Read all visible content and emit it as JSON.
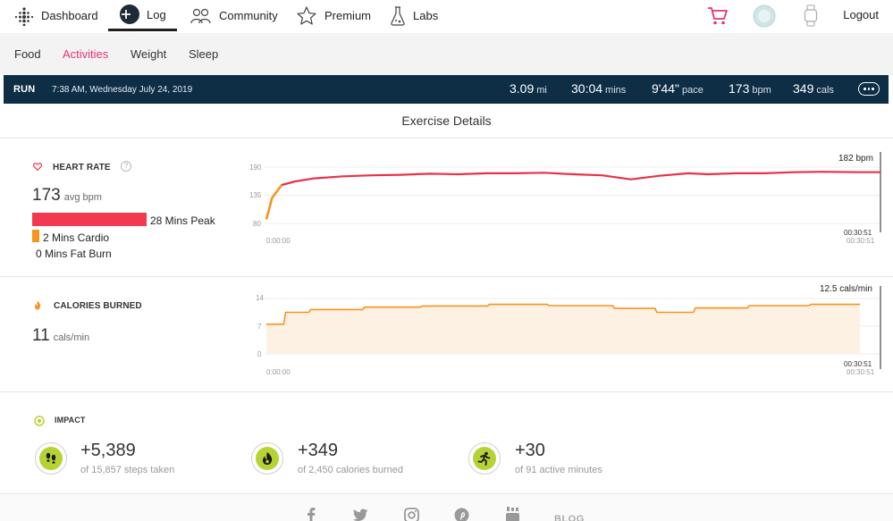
{
  "nav": {
    "dashboard": "Dashboard",
    "log": "Log",
    "community": "Community",
    "premium": "Premium",
    "labs": "Labs",
    "logout": "Logout"
  },
  "subnav": {
    "items": [
      "Food",
      "Activities",
      "Weight",
      "Sleep"
    ],
    "active": "Activities"
  },
  "run": {
    "type": "RUN",
    "datetime": "7:38 AM, Wednesday July 24, 2019",
    "distance": "3.09",
    "distance_unit": "mi",
    "duration": "30:04",
    "duration_unit": "mins",
    "pace": "9'44\"",
    "pace_unit": "pace",
    "avg_hr": "173",
    "avg_hr_unit": "bpm",
    "calories": "349",
    "calories_unit": "cals"
  },
  "details_title": "Exercise Details",
  "heart_rate": {
    "title": "HEART RATE",
    "avg_value": "173",
    "avg_unit": "avg bpm",
    "zones": [
      {
        "label": "28 Mins Peak",
        "minutes": 28,
        "color": "#f2394f"
      },
      {
        "label": "2 Mins Cardio",
        "minutes": 2,
        "color": "#f7931e"
      },
      {
        "label": "0 Mins Fat Burn",
        "minutes": 0,
        "color": "#f6c342"
      }
    ],
    "max_label": "182 bpm",
    "end_time": "00:30:51",
    "end_time_sub": "00:30:51",
    "start_time": "0:00:00"
  },
  "calories": {
    "title": "CALORIES BURNED",
    "avg_value": "11",
    "avg_unit": "cals/min",
    "max_label": "12.5 cals/min",
    "end_time": "00:30:51",
    "end_time_sub": "00:30:51",
    "start_time": "0:00:00"
  },
  "chart_data": [
    {
      "type": "line",
      "x": [
        0,
        0.3,
        0.8,
        1.5,
        2.5,
        4,
        5.5,
        7,
        8.5,
        10,
        11.5,
        13,
        14.5,
        16,
        17.5,
        19,
        20.5,
        22,
        23,
        24.5,
        26,
        27.5,
        29,
        30.85
      ],
      "series": [
        {
          "values": [
            88,
            130,
            155,
            162,
            168,
            172,
            174,
            175,
            177,
            176,
            178,
            178,
            179,
            176,
            174,
            166,
            173,
            178,
            176,
            178,
            178,
            180,
            181,
            180
          ]
        }
      ],
      "yticks": [
        80,
        135,
        190
      ],
      "ylim": [
        80,
        200
      ],
      "xlim": [
        0,
        30.85
      ],
      "color": "#e8324a"
    },
    {
      "type": "area",
      "x": [
        0,
        0.9,
        1.0,
        2.2,
        2.3,
        5.0,
        5.1,
        8.0,
        8.1,
        11.5,
        11.6,
        14.6,
        14.7,
        18.0,
        18.1,
        20.2,
        20.3,
        22.2,
        22.3,
        25.0,
        25.1,
        28.2,
        28.3,
        30.85
      ],
      "series": [
        {
          "values": [
            7.5,
            7.5,
            10.5,
            10.5,
            11.2,
            11.2,
            11.8,
            11.8,
            12.1,
            12.1,
            12.5,
            12.5,
            12.2,
            12.2,
            11.5,
            11.5,
            10.5,
            10.5,
            11.6,
            11.6,
            12.2,
            12.2,
            12.5,
            12.5
          ]
        }
      ],
      "yticks": [
        0,
        7,
        14
      ],
      "ylim": [
        0,
        15
      ],
      "xlim": [
        0,
        30.85
      ],
      "color": "#f7931e"
    }
  ],
  "impact": {
    "title": "IMPACT",
    "items": [
      {
        "value": "+5,389",
        "sub": "of 15,857 steps taken",
        "icon": "footsteps-icon"
      },
      {
        "value": "+349",
        "sub": "of 2,450 calories burned",
        "icon": "flame-icon"
      },
      {
        "value": "+30",
        "sub": "of 91 active minutes",
        "icon": "runner-icon"
      }
    ]
  },
  "footer": {
    "blog": "BLOG"
  },
  "colors": {
    "active_tab": "#e6366f",
    "run_bar": "#0e2e45",
    "impact_green": "#b5d334"
  }
}
